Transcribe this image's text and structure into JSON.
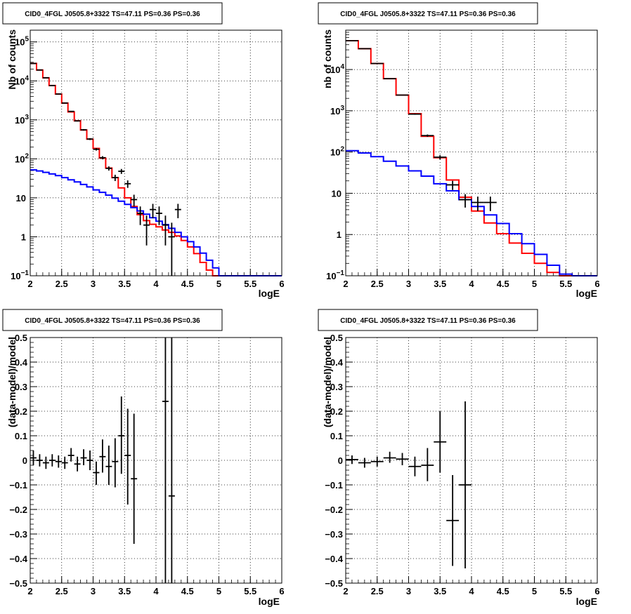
{
  "chart_data": [
    {
      "type": "line",
      "title": "CID0_4FGL J0505.8+3322 TS=47.11 PS=0.36 PS=0.36",
      "xlabel": "logE",
      "ylabel": "Nb of counts",
      "xlim": [
        2,
        6
      ],
      "ylim": [
        0.1,
        200000
      ],
      "yscale": "log",
      "grid": true,
      "x_ticks": [
        "2",
        "2.5",
        "3",
        "3.5",
        "4",
        "4.5",
        "5",
        "5.5",
        "6"
      ],
      "y_ticks": [
        {
          "v": 0.1,
          "mant": "10",
          "exp": "−1"
        },
        {
          "v": 1,
          "mant": "1",
          "exp": ""
        },
        {
          "v": 10,
          "mant": "10",
          "exp": ""
        },
        {
          "v": 100,
          "mant": "10",
          "exp": "2"
        },
        {
          "v": 1000,
          "mant": "10",
          "exp": "3"
        },
        {
          "v": 10000,
          "mant": "10",
          "exp": "4"
        },
        {
          "v": 100000,
          "mant": "10",
          "exp": "5"
        }
      ],
      "series": [
        {
          "color": "#ff0000",
          "edges": [
            2.0,
            2.1,
            2.2,
            2.3,
            2.4,
            2.5,
            2.6,
            2.7,
            2.8,
            2.9,
            3.0,
            3.1,
            3.2,
            3.3,
            3.4,
            3.5,
            3.6,
            3.7,
            3.8,
            3.9,
            4.0,
            4.1,
            4.2,
            4.3,
            4.4,
            4.5,
            4.6,
            4.7,
            4.8,
            4.9,
            5.0,
            5.1,
            5.2,
            5.3,
            5.4,
            5.5,
            5.6,
            5.7,
            5.8,
            5.9,
            6.0
          ],
          "values": [
            28000,
            19000,
            12000,
            7600,
            4600,
            2700,
            1600,
            950,
            550,
            320,
            185,
            105,
            58,
            33,
            18,
            10,
            6.0,
            3.7,
            2.6,
            2.1,
            1.8,
            1.5,
            1.3,
            1.05,
            0.8,
            0.55,
            0.37,
            0.22,
            0.14,
            0.1,
            0.1,
            0.1,
            0.1,
            0.1,
            0.1,
            0.1,
            0.1,
            0.1,
            0.1,
            0.1
          ]
        },
        {
          "color": "#0000ff",
          "edges": [
            2.0,
            2.1,
            2.2,
            2.3,
            2.4,
            2.5,
            2.6,
            2.7,
            2.8,
            2.9,
            3.0,
            3.1,
            3.2,
            3.3,
            3.4,
            3.5,
            3.6,
            3.7,
            3.8,
            3.9,
            4.0,
            4.1,
            4.2,
            4.3,
            4.4,
            4.5,
            4.6,
            4.7,
            4.8,
            4.9,
            5.0,
            5.1,
            5.2,
            5.3,
            5.4,
            5.5,
            5.6,
            5.7,
            5.8,
            5.9,
            6.0
          ],
          "values": [
            52,
            49,
            45,
            41,
            37,
            33,
            29,
            25.5,
            22,
            19,
            16,
            13.8,
            11.7,
            9.8,
            8.2,
            6.8,
            5.6,
            4.6,
            3.8,
            3.1,
            2.5,
            2.05,
            1.65,
            1.3,
            1.0,
            0.75,
            0.55,
            0.38,
            0.25,
            0.16,
            0.1,
            0.1,
            0.1,
            0.1,
            0.1,
            0.1,
            0.1,
            0.1,
            0.1,
            0.1
          ]
        }
      ],
      "points": [
        {
          "x": 2.05,
          "y": 28000,
          "xerr": 0.05,
          "ylo": 27800,
          "yhi": 28200
        },
        {
          "x": 2.15,
          "y": 19000,
          "xerr": 0.05,
          "ylo": 18800,
          "yhi": 19200
        },
        {
          "x": 2.25,
          "y": 12000,
          "xerr": 0.05,
          "ylo": 11850,
          "yhi": 12150
        },
        {
          "x": 2.35,
          "y": 7600,
          "xerr": 0.05,
          "ylo": 7500,
          "yhi": 7700
        },
        {
          "x": 2.45,
          "y": 4600,
          "xerr": 0.05,
          "ylo": 4530,
          "yhi": 4670
        },
        {
          "x": 2.55,
          "y": 2700,
          "xerr": 0.05,
          "ylo": 2650,
          "yhi": 2750
        },
        {
          "x": 2.65,
          "y": 1650,
          "xerr": 0.05,
          "ylo": 1610,
          "yhi": 1690
        },
        {
          "x": 2.75,
          "y": 940,
          "xerr": 0.05,
          "ylo": 910,
          "yhi": 970
        },
        {
          "x": 2.85,
          "y": 555,
          "xerr": 0.05,
          "ylo": 530,
          "yhi": 580
        },
        {
          "x": 2.95,
          "y": 322,
          "xerr": 0.05,
          "ylo": 304,
          "yhi": 340
        },
        {
          "x": 3.05,
          "y": 176,
          "xerr": 0.05,
          "ylo": 163,
          "yhi": 189
        },
        {
          "x": 3.15,
          "y": 107,
          "xerr": 0.05,
          "ylo": 97,
          "yhi": 117
        },
        {
          "x": 3.25,
          "y": 57,
          "xerr": 0.05,
          "ylo": 50,
          "yhi": 64
        },
        {
          "x": 3.35,
          "y": 33,
          "xerr": 0.05,
          "ylo": 27,
          "yhi": 39
        },
        {
          "x": 3.45,
          "y": 48,
          "xerr": 0.05,
          "ylo": 41,
          "yhi": 55
        },
        {
          "x": 3.55,
          "y": 23,
          "xerr": 0.05,
          "ylo": 18,
          "yhi": 28
        },
        {
          "x": 3.65,
          "y": 9,
          "xerr": 0.05,
          "ylo": 6,
          "yhi": 12
        },
        {
          "x": 3.75,
          "y": 4,
          "xerr": 0.05,
          "ylo": 2,
          "yhi": 6
        },
        {
          "x": 3.85,
          "y": 2,
          "xerr": 0.05,
          "ylo": 0.6,
          "yhi": 3.5
        },
        {
          "x": 3.95,
          "y": 5,
          "xerr": 0.05,
          "ylo": 3,
          "yhi": 7
        },
        {
          "x": 4.05,
          "y": 4,
          "xerr": 0.05,
          "ylo": 2,
          "yhi": 6
        },
        {
          "x": 4.15,
          "y": 2,
          "xerr": 0.05,
          "ylo": 0.6,
          "yhi": 3.5
        },
        {
          "x": 4.25,
          "y": 1,
          "xerr": 0.05,
          "ylo": 0.1,
          "yhi": 2.3
        },
        {
          "x": 4.35,
          "y": 5,
          "xerr": 0.05,
          "ylo": 3,
          "yhi": 7
        }
      ]
    },
    {
      "type": "line",
      "title": "CID0_4FGL J0505.8+3322 TS=47.11 PS=0.36 PS=0.36",
      "xlabel": "logE",
      "ylabel": "nb of counts",
      "xlim": [
        2,
        6
      ],
      "ylim": [
        0.1,
        90000
      ],
      "yscale": "log",
      "grid": true,
      "x_ticks": [
        "2",
        "2.5",
        "3",
        "3.5",
        "4",
        "4.5",
        "5",
        "5.5",
        "6"
      ],
      "y_ticks": [
        {
          "v": 0.1,
          "mant": "10",
          "exp": "−1"
        },
        {
          "v": 1,
          "mant": "1",
          "exp": ""
        },
        {
          "v": 10,
          "mant": "10",
          "exp": ""
        },
        {
          "v": 100,
          "mant": "10",
          "exp": "2"
        },
        {
          "v": 1000,
          "mant": "10",
          "exp": "3"
        },
        {
          "v": 10000,
          "mant": "10",
          "exp": "4"
        }
      ],
      "series": [
        {
          "color": "#ff0000",
          "edges": [
            2.0,
            2.2,
            2.4,
            2.6,
            2.8,
            3.0,
            3.2,
            3.4,
            3.6,
            3.8,
            4.0,
            4.2,
            4.4,
            4.6,
            4.8,
            5.0,
            5.2,
            5.4,
            5.6,
            5.8,
            6.0
          ],
          "values": [
            50000,
            32000,
            14000,
            6000,
            2400,
            850,
            240,
            73,
            21,
            8.0,
            3.7,
            1.9,
            1.05,
            0.62,
            0.35,
            0.2,
            0.12,
            0.1,
            0.1,
            0.1
          ]
        },
        {
          "color": "#0000ff",
          "edges": [
            2.0,
            2.2,
            2.4,
            2.6,
            2.8,
            3.0,
            3.2,
            3.4,
            3.6,
            3.8,
            4.0,
            4.2,
            4.4,
            4.6,
            4.8,
            5.0,
            5.2,
            5.4,
            5.6,
            5.8,
            6.0
          ],
          "values": [
            108,
            95,
            77,
            60,
            46,
            35,
            26,
            17,
            11.5,
            7.0,
            4.8,
            3.0,
            1.85,
            1.05,
            0.6,
            0.33,
            0.18,
            0.11,
            0.1,
            0.1
          ]
        }
      ],
      "points": [
        {
          "x": 2.1,
          "y": 50000,
          "xerr": 0.1,
          "ylo": 49700,
          "yhi": 50300
        },
        {
          "x": 2.3,
          "y": 32000,
          "xerr": 0.1,
          "ylo": 31800,
          "yhi": 32200
        },
        {
          "x": 2.5,
          "y": 14000,
          "xerr": 0.1,
          "ylo": 13880,
          "yhi": 14120
        },
        {
          "x": 2.7,
          "y": 6000,
          "xerr": 0.1,
          "ylo": 5920,
          "yhi": 6080
        },
        {
          "x": 2.9,
          "y": 2400,
          "xerr": 0.1,
          "ylo": 2350,
          "yhi": 2450
        },
        {
          "x": 3.1,
          "y": 830,
          "xerr": 0.1,
          "ylo": 800,
          "yhi": 860
        },
        {
          "x": 3.3,
          "y": 250,
          "xerr": 0.1,
          "ylo": 234,
          "yhi": 266
        },
        {
          "x": 3.5,
          "y": 75,
          "xerr": 0.1,
          "ylo": 66,
          "yhi": 84
        },
        {
          "x": 3.7,
          "y": 16,
          "xerr": 0.1,
          "ylo": 12,
          "yhi": 20
        },
        {
          "x": 3.9,
          "y": 7,
          "xerr": 0.1,
          "ylo": 4.5,
          "yhi": 9.5
        },
        {
          "x": 4.1,
          "y": 6,
          "xerr": 0.1,
          "ylo": 3.7,
          "yhi": 8.3
        },
        {
          "x": 4.3,
          "y": 6,
          "xerr": 0.1,
          "ylo": 3.7,
          "yhi": 8.3
        }
      ]
    },
    {
      "type": "scatter",
      "title": "CID0_4FGL J0505.8+3322 TS=47.11 PS=0.36 PS=0.36",
      "xlabel": "logE",
      "ylabel": "(data-model)/model",
      "xlim": [
        2,
        6
      ],
      "ylim": [
        -0.5,
        0.5
      ],
      "grid": true,
      "x_ticks": [
        "2",
        "2.5",
        "3",
        "3.5",
        "4",
        "4.5",
        "5",
        "5.5",
        "6"
      ],
      "y_ticks": [
        "−0.5",
        "−0.4",
        "−0.3",
        "−0.2",
        "−0.1",
        "0",
        "0.1",
        "0.2",
        "0.3",
        "0.4",
        "0.5"
      ],
      "points": [
        {
          "x": 2.05,
          "y": 0.01,
          "xerr": 0.05,
          "ylo": -0.02,
          "yhi": 0.04
        },
        {
          "x": 2.15,
          "y": 0.0,
          "xerr": 0.05,
          "ylo": -0.025,
          "yhi": 0.025
        },
        {
          "x": 2.25,
          "y": -0.01,
          "xerr": 0.05,
          "ylo": -0.035,
          "yhi": 0.015
        },
        {
          "x": 2.35,
          "y": 0.0,
          "xerr": 0.05,
          "ylo": -0.025,
          "yhi": 0.025
        },
        {
          "x": 2.45,
          "y": -0.005,
          "xerr": 0.05,
          "ylo": -0.03,
          "yhi": 0.02
        },
        {
          "x": 2.55,
          "y": -0.01,
          "xerr": 0.05,
          "ylo": -0.035,
          "yhi": 0.015
        },
        {
          "x": 2.65,
          "y": 0.02,
          "xerr": 0.05,
          "ylo": -0.005,
          "yhi": 0.05
        },
        {
          "x": 2.75,
          "y": -0.015,
          "xerr": 0.05,
          "ylo": -0.045,
          "yhi": 0.015
        },
        {
          "x": 2.85,
          "y": 0.01,
          "xerr": 0.05,
          "ylo": -0.02,
          "yhi": 0.045
        },
        {
          "x": 2.95,
          "y": 0.0,
          "xerr": 0.05,
          "ylo": -0.04,
          "yhi": 0.04
        },
        {
          "x": 3.05,
          "y": -0.05,
          "xerr": 0.05,
          "ylo": -0.1,
          "yhi": -0.005
        },
        {
          "x": 3.15,
          "y": 0.015,
          "xerr": 0.05,
          "ylo": -0.05,
          "yhi": 0.085
        },
        {
          "x": 3.25,
          "y": -0.025,
          "xerr": 0.05,
          "ylo": -0.1,
          "yhi": 0.06
        },
        {
          "x": 3.35,
          "y": -0.005,
          "xerr": 0.05,
          "ylo": -0.11,
          "yhi": 0.09
        },
        {
          "x": 3.45,
          "y": 0.1,
          "xerr": 0.05,
          "ylo": -0.055,
          "yhi": 0.26
        },
        {
          "x": 3.55,
          "y": 0.02,
          "xerr": 0.05,
          "ylo": -0.18,
          "yhi": 0.21
        },
        {
          "x": 3.65,
          "y": -0.075,
          "xerr": 0.05,
          "ylo": -0.34,
          "yhi": 0.19
        },
        {
          "x": 4.15,
          "y": 0.24,
          "xerr": 0.05,
          "ylo": -0.5,
          "yhi": 0.5
        },
        {
          "x": 4.25,
          "y": -0.145,
          "xerr": 0.05,
          "ylo": -0.5,
          "yhi": 0.5
        }
      ]
    },
    {
      "type": "scatter",
      "title": "CID0_4FGL J0505.8+3322 TS=47.11 PS=0.36 PS=0.36",
      "xlabel": "logE",
      "ylabel": "(data-model)/model",
      "xlim": [
        2,
        6
      ],
      "ylim": [
        -0.5,
        0.5
      ],
      "grid": true,
      "x_ticks": [
        "2",
        "2.5",
        "3",
        "3.5",
        "4",
        "4.5",
        "5",
        "5.5",
        "6"
      ],
      "y_ticks": [
        "−0.5",
        "−0.4",
        "−0.3",
        "−0.2",
        "−0.1",
        "0",
        "0.1",
        "0.2",
        "0.3",
        "0.4",
        "0.5"
      ],
      "points": [
        {
          "x": 2.1,
          "y": 0.003,
          "xerr": 0.1,
          "ylo": -0.015,
          "yhi": 0.02
        },
        {
          "x": 2.3,
          "y": -0.01,
          "xerr": 0.1,
          "ylo": -0.03,
          "yhi": 0.01
        },
        {
          "x": 2.5,
          "y": -0.005,
          "xerr": 0.1,
          "ylo": -0.025,
          "yhi": 0.015
        },
        {
          "x": 2.7,
          "y": 0.01,
          "xerr": 0.1,
          "ylo": -0.01,
          "yhi": 0.035
        },
        {
          "x": 2.9,
          "y": 0.005,
          "xerr": 0.1,
          "ylo": -0.02,
          "yhi": 0.03
        },
        {
          "x": 3.1,
          "y": -0.025,
          "xerr": 0.1,
          "ylo": -0.065,
          "yhi": 0.015
        },
        {
          "x": 3.3,
          "y": -0.02,
          "xerr": 0.1,
          "ylo": -0.085,
          "yhi": 0.05
        },
        {
          "x": 3.5,
          "y": 0.075,
          "xerr": 0.1,
          "ylo": -0.05,
          "yhi": 0.2
        },
        {
          "x": 3.7,
          "y": -0.245,
          "xerr": 0.1,
          "ylo": -0.43,
          "yhi": -0.06
        },
        {
          "x": 3.9,
          "y": -0.1,
          "xerr": 0.1,
          "ylo": -0.44,
          "yhi": 0.24
        }
      ]
    }
  ]
}
